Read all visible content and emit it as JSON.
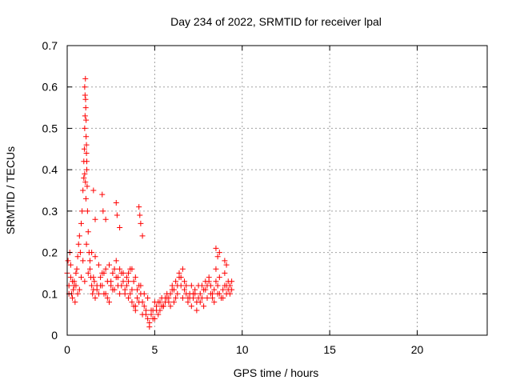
{
  "chart_data": {
    "type": "scatter",
    "title": "Day 234 of 2022, SRMTID for receiver lpal",
    "xlabel": "GPS time / hours",
    "ylabel": "SRMTID / TECUs",
    "xlim": [
      0,
      24
    ],
    "ylim": [
      0,
      0.7
    ],
    "xticks": [
      0,
      5,
      10,
      15,
      20
    ],
    "xtick_labels": [
      "0",
      "5",
      "10",
      "15",
      "20"
    ],
    "yticks": [
      0,
      0.1,
      0.2,
      0.3,
      0.4,
      0.5,
      0.6,
      0.7
    ],
    "ytick_labels": [
      "0",
      "0.1",
      "0.2",
      "0.3",
      "0.4",
      "0.5",
      "0.6",
      "0.7"
    ],
    "grid": true,
    "marker": "+",
    "color": "#ff0000",
    "series": [
      {
        "name": "SRMTID",
        "x": [
          0.0,
          0.05,
          0.1,
          0.15,
          0.2,
          0.25,
          0.3,
          0.35,
          0.4,
          0.45,
          0.5,
          0.55,
          0.6,
          0.65,
          0.7,
          0.75,
          0.8,
          0.85,
          0.9,
          0.95,
          0.98,
          1.0,
          1.02,
          1.04,
          1.06,
          1.08,
          1.1,
          1.12,
          1.14,
          1.16,
          1.2,
          1.25,
          1.3,
          1.35,
          1.4,
          1.45,
          1.5,
          1.55,
          1.6,
          1.7,
          1.8,
          1.9,
          2.0,
          2.1,
          2.2,
          2.3,
          2.4,
          2.5,
          2.6,
          2.7,
          2.8,
          2.9,
          3.0,
          3.1,
          3.2,
          3.3,
          3.4,
          3.5,
          3.6,
          3.7,
          3.8,
          3.9,
          4.0,
          4.1,
          4.2,
          4.3,
          4.4,
          4.5,
          4.6,
          4.7,
          4.8,
          4.9,
          5.0,
          5.1,
          5.2,
          5.3,
          5.4,
          5.5,
          5.6,
          5.7,
          5.8,
          5.9,
          6.0,
          6.1,
          6.2,
          6.3,
          6.4,
          6.5,
          6.6,
          6.7,
          6.8,
          6.9,
          7.0,
          7.1,
          7.2,
          7.3,
          7.4,
          7.5,
          7.6,
          7.7,
          7.8,
          7.9,
          8.0,
          8.1,
          8.2,
          8.3,
          8.4,
          8.5,
          8.6,
          8.7,
          8.8,
          8.9,
          9.0,
          9.1,
          9.2,
          9.3,
          9.4,
          0.1,
          0.3,
          0.5,
          0.7,
          0.9,
          1.1,
          1.3,
          1.5,
          1.7,
          1.9,
          2.1,
          2.3,
          2.5,
          2.7,
          2.9,
          3.1,
          3.3,
          3.5,
          3.7,
          3.9,
          4.1,
          4.3,
          4.5,
          4.7,
          4.9,
          5.1,
          5.3,
          5.5,
          5.7,
          5.9,
          6.1,
          6.3,
          6.5,
          6.7,
          6.9,
          7.1,
          7.3,
          7.5,
          7.7,
          7.9,
          8.1,
          8.3,
          8.5,
          8.7,
          8.9,
          9.1,
          9.3,
          0.2,
          0.4,
          0.6,
          0.8,
          1.0,
          1.2,
          1.4,
          1.6,
          1.8,
          2.0,
          2.2,
          2.4,
          2.6,
          2.8,
          3.0,
          3.2,
          3.4,
          3.6,
          3.8,
          4.0,
          4.2,
          4.4,
          4.6,
          4.8,
          5.0,
          5.2,
          5.4,
          5.6,
          5.8,
          6.0,
          6.2,
          6.4,
          6.6,
          6.8,
          7.0,
          7.2,
          7.4,
          7.6,
          7.8,
          8.0,
          8.2,
          8.4,
          8.6,
          8.8,
          9.0,
          9.2,
          9.4,
          1.0,
          1.02,
          1.05,
          1.08,
          1.1,
          0.95,
          1.12,
          1.0,
          1.04,
          1.07,
          2.0,
          2.05,
          2.2,
          2.8,
          2.85,
          3.0,
          4.1,
          4.2,
          4.3,
          4.15,
          8.5,
          8.6,
          8.7,
          9.0,
          9.1,
          3.5,
          3.7,
          3.9,
          1.5,
          1.6
        ],
        "y": [
          0.15,
          0.18,
          0.12,
          0.2,
          0.14,
          0.1,
          0.09,
          0.11,
          0.13,
          0.08,
          0.12,
          0.16,
          0.19,
          0.22,
          0.24,
          0.2,
          0.27,
          0.3,
          0.35,
          0.38,
          0.45,
          0.5,
          0.58,
          0.62,
          0.55,
          0.48,
          0.44,
          0.42,
          0.36,
          0.3,
          0.25,
          0.2,
          0.18,
          0.14,
          0.12,
          0.1,
          0.11,
          0.13,
          0.09,
          0.12,
          0.1,
          0.14,
          0.12,
          0.15,
          0.1,
          0.13,
          0.08,
          0.12,
          0.11,
          0.16,
          0.14,
          0.12,
          0.1,
          0.15,
          0.13,
          0.11,
          0.12,
          0.09,
          0.1,
          0.08,
          0.07,
          0.06,
          0.09,
          0.12,
          0.1,
          0.08,
          0.07,
          0.05,
          0.04,
          0.03,
          0.05,
          0.06,
          0.04,
          0.07,
          0.08,
          0.06,
          0.09,
          0.07,
          0.08,
          0.1,
          0.09,
          0.07,
          0.12,
          0.11,
          0.13,
          0.1,
          0.14,
          0.12,
          0.09,
          0.11,
          0.1,
          0.08,
          0.09,
          0.12,
          0.1,
          0.11,
          0.08,
          0.09,
          0.1,
          0.12,
          0.11,
          0.13,
          0.12,
          0.14,
          0.1,
          0.09,
          0.11,
          0.13,
          0.12,
          0.1,
          0.09,
          0.11,
          0.12,
          0.1,
          0.13,
          0.12,
          0.11,
          0.1,
          0.13,
          0.15,
          0.11,
          0.18,
          0.22,
          0.16,
          0.14,
          0.11,
          0.12,
          0.1,
          0.09,
          0.13,
          0.11,
          0.14,
          0.12,
          0.1,
          0.13,
          0.11,
          0.07,
          0.08,
          0.05,
          0.06,
          0.02,
          0.04,
          0.06,
          0.08,
          0.07,
          0.09,
          0.1,
          0.08,
          0.12,
          0.14,
          0.13,
          0.09,
          0.07,
          0.1,
          0.12,
          0.09,
          0.11,
          0.13,
          0.1,
          0.16,
          0.14,
          0.09,
          0.12,
          0.1,
          0.17,
          0.12,
          0.1,
          0.14,
          0.13,
          0.15,
          0.2,
          0.19,
          0.17,
          0.15,
          0.16,
          0.17,
          0.15,
          0.18,
          0.16,
          0.15,
          0.14,
          0.16,
          0.13,
          0.11,
          0.12,
          0.1,
          0.09,
          0.06,
          0.08,
          0.05,
          0.07,
          0.09,
          0.08,
          0.11,
          0.09,
          0.15,
          0.16,
          0.12,
          0.1,
          0.09,
          0.06,
          0.08,
          0.07,
          0.09,
          0.12,
          0.08,
          0.1,
          0.09,
          0.15,
          0.11,
          0.13,
          0.6,
          0.53,
          0.57,
          0.52,
          0.46,
          0.42,
          0.4,
          0.39,
          0.37,
          0.33,
          0.34,
          0.3,
          0.28,
          0.32,
          0.29,
          0.26,
          0.31,
          0.27,
          0.24,
          0.29,
          0.21,
          0.19,
          0.2,
          0.18,
          0.17,
          0.15,
          0.16,
          0.14,
          0.35,
          0.28
        ]
      }
    ]
  }
}
